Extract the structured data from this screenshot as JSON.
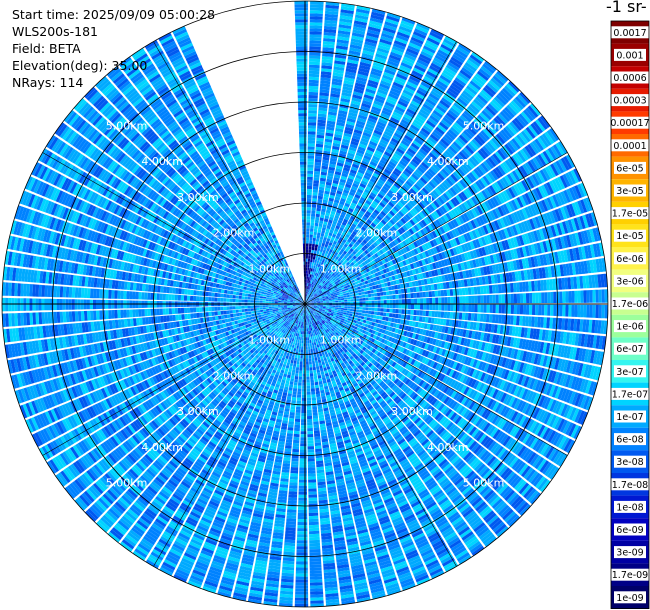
{
  "info": {
    "start_time": "Start time: 2025/09/09 05:00:28",
    "instrument": "WLS200s-181",
    "field": "Field: BETA",
    "elevation": "Elevation(deg): 35.00",
    "nrays": "NRays: 114"
  },
  "colorbar": {
    "unit_label": "-1 sr-",
    "ticks": [
      "0.0017",
      "0.001",
      "0.0006",
      "0.0003",
      "0.00017",
      "0.0001",
      "6e-05",
      "3e-05",
      "1.7e-05",
      "1e-05",
      "6e-06",
      "3e-06",
      "1.7e-06",
      "1e-06",
      "6e-07",
      "3e-07",
      "1.7e-07",
      "1e-07",
      "6e-08",
      "3e-08",
      "1.7e-08",
      "1e-08",
      "6e-09",
      "3e-09",
      "1.7e-09",
      "1e-09"
    ],
    "colors": [
      "#7f0000",
      "#9a0000",
      "#c30000",
      "#e61b00",
      "#ff3b00",
      "#ff6a00",
      "#ff9200",
      "#ffb400",
      "#ffd000",
      "#ffe31a",
      "#fff24a",
      "#f2ff80",
      "#c8ff90",
      "#9cff9c",
      "#6effc8",
      "#34f5f0",
      "#00d4ff",
      "#00aaff",
      "#0082ff",
      "#0059f0",
      "#0037e0",
      "#0018d2",
      "#0000c0",
      "#0000a3",
      "#000086",
      "#000069"
    ]
  },
  "chart_data": {
    "type": "heatmap",
    "projection": "polar PPI",
    "field": "BETA",
    "elevation_deg": 35.0,
    "n_rays": 114,
    "range_rings_km": [
      1,
      2,
      3,
      4,
      5
    ],
    "ring_labels": [
      "1.00km",
      "2.00km",
      "3.00km",
      "4.00km",
      "5.00km"
    ],
    "max_range_km": 6.0,
    "scale": "log",
    "value_range": [
      1e-09,
      0.0017
    ],
    "azimuth_gap_deg": [
      337,
      358
    ],
    "typical_value_range": [
      3e-08,
      2e-07
    ]
  }
}
